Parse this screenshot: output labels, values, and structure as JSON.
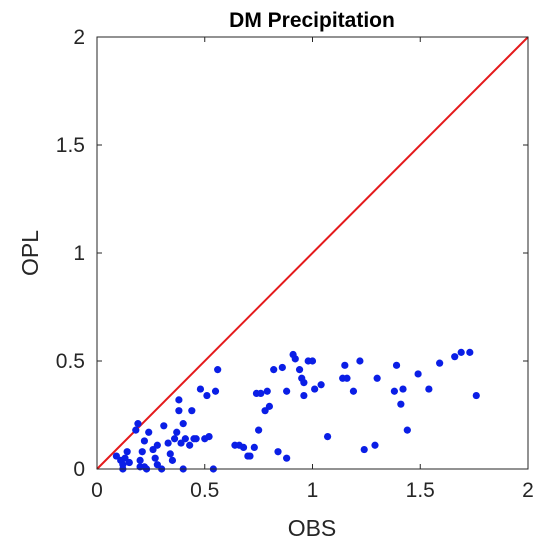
{
  "chart_data": {
    "type": "scatter",
    "title": "DM Precipitation",
    "xlabel": "OBS",
    "ylabel": "OPL",
    "xlim": [
      0,
      2
    ],
    "ylim": [
      0,
      2
    ],
    "xticks": [
      0,
      0.5,
      1,
      1.5,
      2
    ],
    "yticks": [
      0,
      0.5,
      1,
      1.5,
      2
    ],
    "xtick_labels": [
      "0",
      "0.5",
      "1",
      "1.5",
      "2"
    ],
    "ytick_labels": [
      "0",
      "0.5",
      "1",
      "1.5",
      "2"
    ],
    "grid": false,
    "reference_line": {
      "x": [
        0,
        2
      ],
      "y": [
        0,
        2
      ],
      "color": "#e41a1c"
    },
    "marker_color": "#0a1ee6",
    "points": [
      [
        0.09,
        0.06
      ],
      [
        0.11,
        0.04
      ],
      [
        0.12,
        0.02
      ],
      [
        0.12,
        0.0
      ],
      [
        0.13,
        0.05
      ],
      [
        0.14,
        0.08
      ],
      [
        0.15,
        0.03
      ],
      [
        0.18,
        0.18
      ],
      [
        0.19,
        0.21
      ],
      [
        0.2,
        0.01
      ],
      [
        0.2,
        0.04
      ],
      [
        0.21,
        0.08
      ],
      [
        0.22,
        0.13
      ],
      [
        0.22,
        0.01
      ],
      [
        0.23,
        0.0
      ],
      [
        0.24,
        0.17
      ],
      [
        0.26,
        0.09
      ],
      [
        0.27,
        0.05
      ],
      [
        0.28,
        0.11
      ],
      [
        0.28,
        0.02
      ],
      [
        0.3,
        0.0
      ],
      [
        0.31,
        0.2
      ],
      [
        0.33,
        0.12
      ],
      [
        0.34,
        0.07
      ],
      [
        0.35,
        0.04
      ],
      [
        0.36,
        0.14
      ],
      [
        0.37,
        0.17
      ],
      [
        0.38,
        0.32
      ],
      [
        0.38,
        0.27
      ],
      [
        0.39,
        0.12
      ],
      [
        0.4,
        0.21
      ],
      [
        0.4,
        0.0
      ],
      [
        0.41,
        0.14
      ],
      [
        0.43,
        0.11
      ],
      [
        0.44,
        0.27
      ],
      [
        0.45,
        0.14
      ],
      [
        0.46,
        0.14
      ],
      [
        0.48,
        0.37
      ],
      [
        0.5,
        0.14
      ],
      [
        0.51,
        0.34
      ],
      [
        0.52,
        0.15
      ],
      [
        0.54,
        0.0
      ],
      [
        0.55,
        0.36
      ],
      [
        0.56,
        0.46
      ],
      [
        0.64,
        0.11
      ],
      [
        0.66,
        0.11
      ],
      [
        0.68,
        0.1
      ],
      [
        0.7,
        0.06
      ],
      [
        0.71,
        0.06
      ],
      [
        0.73,
        0.1
      ],
      [
        0.74,
        0.35
      ],
      [
        0.75,
        0.18
      ],
      [
        0.76,
        0.35
      ],
      [
        0.78,
        0.27
      ],
      [
        0.79,
        0.36
      ],
      [
        0.8,
        0.29
      ],
      [
        0.82,
        0.46
      ],
      [
        0.84,
        0.08
      ],
      [
        0.86,
        0.47
      ],
      [
        0.88,
        0.36
      ],
      [
        0.88,
        0.05
      ],
      [
        0.91,
        0.53
      ],
      [
        0.92,
        0.51
      ],
      [
        0.94,
        0.46
      ],
      [
        0.95,
        0.42
      ],
      [
        0.96,
        0.4
      ],
      [
        0.96,
        0.34
      ],
      [
        0.98,
        0.5
      ],
      [
        1.0,
        0.5
      ],
      [
        1.01,
        0.37
      ],
      [
        1.04,
        0.39
      ],
      [
        1.07,
        0.15
      ],
      [
        1.14,
        0.42
      ],
      [
        1.15,
        0.48
      ],
      [
        1.16,
        0.42
      ],
      [
        1.19,
        0.36
      ],
      [
        1.22,
        0.5
      ],
      [
        1.24,
        0.09
      ],
      [
        1.29,
        0.11
      ],
      [
        1.3,
        0.42
      ],
      [
        1.38,
        0.36
      ],
      [
        1.39,
        0.48
      ],
      [
        1.41,
        0.3
      ],
      [
        1.42,
        0.37
      ],
      [
        1.44,
        0.18
      ],
      [
        1.49,
        0.44
      ],
      [
        1.54,
        0.37
      ],
      [
        1.59,
        0.49
      ],
      [
        1.66,
        0.52
      ],
      [
        1.69,
        0.54
      ],
      [
        1.73,
        0.54
      ],
      [
        1.76,
        0.34
      ]
    ]
  }
}
